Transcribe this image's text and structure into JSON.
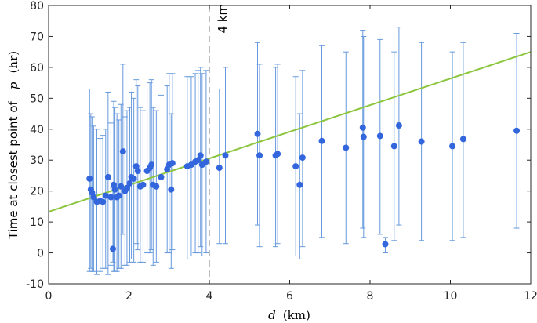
{
  "chart_data": {
    "type": "scatter",
    "title": "",
    "xlabel_var": "d",
    "xlabel_unit": "(km)",
    "ylabel_text": "Time at closest point of",
    "ylabel_var": "p",
    "ylabel_unit": "(hr)",
    "xlim": [
      0,
      12
    ],
    "ylim": [
      -10,
      80
    ],
    "xticks": [
      0,
      2,
      4,
      6,
      8,
      10,
      12
    ],
    "yticks": [
      -10,
      0,
      10,
      20,
      30,
      40,
      50,
      60,
      70,
      80
    ],
    "grid": false,
    "colors": {
      "points": "#3366dd",
      "errorbars": "#6699dd",
      "fit": "#8cc63f",
      "threshold": "#999999"
    },
    "threshold": {
      "x": 4,
      "label": "4 km"
    },
    "fit_line": {
      "x": [
        0,
        12
      ],
      "y": [
        13.3,
        65
      ]
    },
    "points": [
      {
        "x": 1.02,
        "y": 24.0,
        "lo": -6,
        "hi": 53
      },
      {
        "x": 1.05,
        "y": 20.5,
        "lo": -5,
        "hi": 45
      },
      {
        "x": 1.08,
        "y": 19.5,
        "lo": -6,
        "hi": 44
      },
      {
        "x": 1.12,
        "y": 18.0,
        "lo": -6,
        "hi": 41
      },
      {
        "x": 1.2,
        "y": 16.5,
        "lo": -7,
        "hi": 40
      },
      {
        "x": 1.28,
        "y": 16.8,
        "lo": -6,
        "hi": 37
      },
      {
        "x": 1.35,
        "y": 16.5,
        "lo": -5,
        "hi": 38
      },
      {
        "x": 1.42,
        "y": 18.5,
        "lo": -5,
        "hi": 40
      },
      {
        "x": 1.48,
        "y": 24.5,
        "lo": -7,
        "hi": 52
      },
      {
        "x": 1.55,
        "y": 18.0,
        "lo": -4,
        "hi": 42
      },
      {
        "x": 1.6,
        "y": 1.3,
        "lo": -3,
        "hi": 21
      },
      {
        "x": 1.62,
        "y": 22.0,
        "lo": -6,
        "hi": 49
      },
      {
        "x": 1.65,
        "y": 20.5,
        "lo": -6,
        "hi": 47
      },
      {
        "x": 1.7,
        "y": 18.0,
        "lo": -6,
        "hi": 45
      },
      {
        "x": 1.75,
        "y": 18.5,
        "lo": -5,
        "hi": 43
      },
      {
        "x": 1.8,
        "y": 21.5,
        "lo": -5,
        "hi": 48
      },
      {
        "x": 1.85,
        "y": 32.8,
        "lo": 6,
        "hi": 61
      },
      {
        "x": 1.9,
        "y": 20.0,
        "lo": -4,
        "hi": 44
      },
      {
        "x": 1.95,
        "y": 21.0,
        "lo": -4,
        "hi": 46
      },
      {
        "x": 2.02,
        "y": 22.5,
        "lo": -3,
        "hi": 47
      },
      {
        "x": 2.06,
        "y": 24.5,
        "lo": -2,
        "hi": 52
      },
      {
        "x": 2.12,
        "y": 24.0,
        "lo": -3,
        "hi": 50
      },
      {
        "x": 2.18,
        "y": 28.0,
        "lo": 3,
        "hi": 56
      },
      {
        "x": 2.22,
        "y": 26.5,
        "lo": 1,
        "hi": 54
      },
      {
        "x": 2.28,
        "y": 21.5,
        "lo": -3,
        "hi": 47
      },
      {
        "x": 2.35,
        "y": 22.0,
        "lo": -3,
        "hi": 46
      },
      {
        "x": 2.45,
        "y": 26.5,
        "lo": 0,
        "hi": 53
      },
      {
        "x": 2.52,
        "y": 27.5,
        "lo": 0,
        "hi": 55
      },
      {
        "x": 2.56,
        "y": 28.5,
        "lo": 1,
        "hi": 56
      },
      {
        "x": 2.6,
        "y": 22.0,
        "lo": -4,
        "hi": 47
      },
      {
        "x": 2.68,
        "y": 21.5,
        "lo": -3,
        "hi": 46
      },
      {
        "x": 2.8,
        "y": 24.5,
        "lo": -1,
        "hi": 51
      },
      {
        "x": 2.95,
        "y": 27.0,
        "lo": 0,
        "hi": 54
      },
      {
        "x": 3.0,
        "y": 28.5,
        "lo": 0,
        "hi": 58
      },
      {
        "x": 3.05,
        "y": 20.5,
        "lo": -5,
        "hi": 45
      },
      {
        "x": 3.08,
        "y": 29.0,
        "lo": 1,
        "hi": 58
      },
      {
        "x": 3.45,
        "y": 28.0,
        "lo": -2,
        "hi": 57
      },
      {
        "x": 3.55,
        "y": 28.5,
        "lo": -1,
        "hi": 57
      },
      {
        "x": 3.65,
        "y": 29.5,
        "lo": 0,
        "hi": 58
      },
      {
        "x": 3.72,
        "y": 30.0,
        "lo": 0,
        "hi": 59
      },
      {
        "x": 3.78,
        "y": 31.5,
        "lo": 2,
        "hi": 60
      },
      {
        "x": 3.82,
        "y": 28.5,
        "lo": -1,
        "hi": 58
      },
      {
        "x": 3.92,
        "y": 29.5,
        "lo": 0,
        "hi": 59
      },
      {
        "x": 4.25,
        "y": 27.5,
        "lo": 3,
        "hi": 53
      },
      {
        "x": 4.4,
        "y": 31.5,
        "lo": 3,
        "hi": 60
      },
      {
        "x": 5.2,
        "y": 38.5,
        "lo": 9,
        "hi": 68
      },
      {
        "x": 5.25,
        "y": 31.5,
        "lo": 2,
        "hi": 61
      },
      {
        "x": 5.65,
        "y": 31.5,
        "lo": 2,
        "hi": 60
      },
      {
        "x": 5.7,
        "y": 32.0,
        "lo": 3,
        "hi": 61
      },
      {
        "x": 6.15,
        "y": 28.0,
        "lo": -1,
        "hi": 57
      },
      {
        "x": 6.25,
        "y": 22.0,
        "lo": -2,
        "hi": 45
      },
      {
        "x": 6.32,
        "y": 30.8,
        "lo": 2,
        "hi": 59
      },
      {
        "x": 6.8,
        "y": 36.2,
        "lo": 5,
        "hi": 67
      },
      {
        "x": 7.4,
        "y": 34.0,
        "lo": 3,
        "hi": 65
      },
      {
        "x": 7.82,
        "y": 40.5,
        "lo": 8,
        "hi": 72
      },
      {
        "x": 7.84,
        "y": 37.5,
        "lo": 5,
        "hi": 70
      },
      {
        "x": 8.25,
        "y": 37.8,
        "lo": 6,
        "hi": 69
      },
      {
        "x": 8.38,
        "y": 2.8,
        "lo": 0,
        "hi": 5
      },
      {
        "x": 8.6,
        "y": 34.5,
        "lo": 4,
        "hi": 65
      },
      {
        "x": 8.72,
        "y": 41.2,
        "lo": 9,
        "hi": 73
      },
      {
        "x": 9.28,
        "y": 36.0,
        "lo": 4,
        "hi": 68
      },
      {
        "x": 10.05,
        "y": 34.5,
        "lo": 4,
        "hi": 65
      },
      {
        "x": 10.32,
        "y": 36.8,
        "lo": 5,
        "hi": 68
      },
      {
        "x": 11.65,
        "y": 39.5,
        "lo": 8,
        "hi": 71
      }
    ]
  }
}
